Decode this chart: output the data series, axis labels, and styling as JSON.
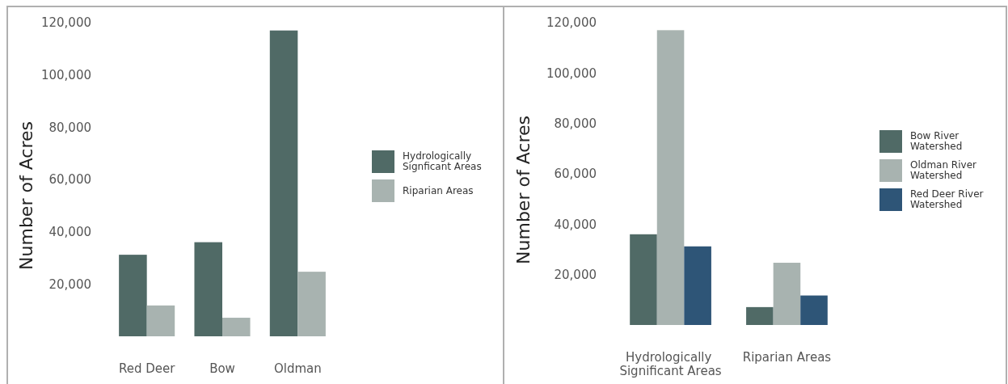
{
  "chart_data": [
    {
      "type": "bar",
      "ylabel": "Number of Acres",
      "categories": [
        "Red Deer",
        "Bow",
        "Oldman"
      ],
      "ylim": [
        0,
        120000
      ],
      "yticks": [
        {
          "value": 20000,
          "label": "20,000"
        },
        {
          "value": 40000,
          "label": "40,000"
        },
        {
          "value": 60000,
          "label": "60,000"
        },
        {
          "value": 80000,
          "label": "80,000"
        },
        {
          "value": 100000,
          "label": "100,000"
        },
        {
          "value": 120000,
          "label": "120,000"
        }
      ],
      "legend": "right",
      "grid": false,
      "series": [
        {
          "name": "Hydrologically Signficant Areas",
          "color": "#506a66",
          "values": [
            31200,
            36000,
            117000
          ]
        },
        {
          "name": "Riparian Areas",
          "color": "#a8b3b0",
          "values": [
            11800,
            7100,
            24700
          ]
        }
      ]
    },
    {
      "type": "bar",
      "ylabel": "Number of Acres",
      "categories": [
        "Hydrologically Significant Areas",
        "Riparian Areas"
      ],
      "ylim": [
        0,
        120000
      ],
      "yticks": [
        {
          "value": 20000,
          "label": "20,000"
        },
        {
          "value": 40000,
          "label": "40,000"
        },
        {
          "value": 60000,
          "label": "60,000"
        },
        {
          "value": 80000,
          "label": "80,000"
        },
        {
          "value": 100000,
          "label": "100,000"
        },
        {
          "value": 120000,
          "label": "120,000"
        }
      ],
      "legend": "right",
      "grid": false,
      "series": [
        {
          "name": "Bow River Watershed",
          "color": "#506a66",
          "values": [
            36000,
            7100
          ]
        },
        {
          "name": "Oldman River Watershed",
          "color": "#a8b3b0",
          "values": [
            117000,
            24700
          ]
        },
        {
          "name": "Red Deer River Watershed",
          "color": "#2e5577",
          "values": [
            31200,
            11700
          ]
        }
      ]
    }
  ]
}
